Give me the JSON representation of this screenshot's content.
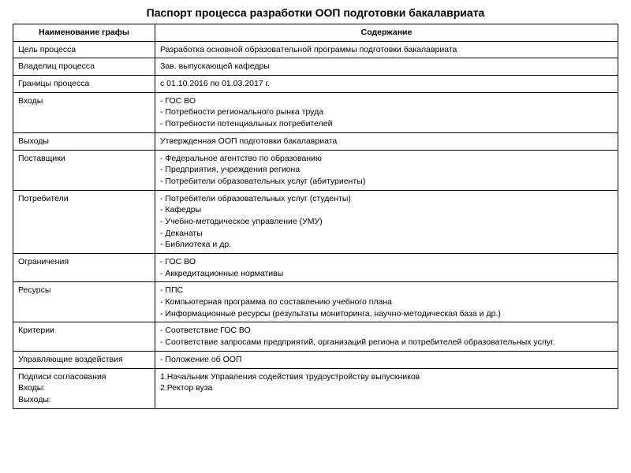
{
  "title": "Паспорт процесса разработки ООП подготовки бакалавриата",
  "headers": {
    "col1": "Наименование графы",
    "col2": "Содержание"
  },
  "rows": [
    {
      "label": "Цель процесса",
      "content": "Разработка основной образовательной программы подготовки бакалавриата"
    },
    {
      "label": "Владелиц процесса",
      "content": "Зав. выпускающей кафедры"
    },
    {
      "label": "Границы процесса",
      "content": "с 01.10.2016 по 01.03.2017 г."
    },
    {
      "label": "Входы",
      "content": "- ГОС ВО\n- Потребности регионального рынка труда\n- Потребности потенциальных потребителей"
    },
    {
      "label": "Выходы",
      "content": "Утвержденная ООП подготовки бакалавриата"
    },
    {
      "label": "Поставщики",
      "content": "- Федеральное агентство по образованию\n- Предприятия, учреждения региона\n- Потребители образовательных услуг (абитуриенты)"
    },
    {
      "label": "Потребители",
      "content": "- Потребители образовательных услуг (студенты)\n- Кафедры\n- Учебно-методическое управление (УМУ)\n- Деканаты\n- Библиотека и др."
    },
    {
      "label": "Ограничения",
      "content": "- ГОС ВО\n- Аккредитационные нормативы"
    },
    {
      "label": "Ресурсы",
      "content": "- ППС\n- Компьютерная программа по составлению учебного плана\n- Информационные ресурсы (результаты мониторинга, научно-методическая база и др.)"
    },
    {
      "label": "Критерии",
      "content": "- Соответствие ГОС ВО\n- Соответствие запросами предприятий, организаций региона и потребителей образовательных услуг."
    },
    {
      "label": "Управляющие воздействия",
      "content": "- Положение об ООП"
    },
    {
      "label": "Подписи согласования\nВходы:\nВыходы:",
      "content": "1.Начальник Управления содействия трудоустройству выпускников\n2.Ректор вуза"
    }
  ]
}
